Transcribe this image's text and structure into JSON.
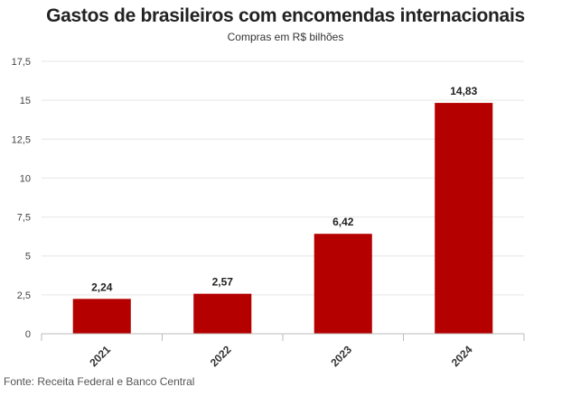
{
  "chart_data": {
    "type": "bar",
    "title": "Gastos de brasileiros com encomendas internacionais",
    "subtitle": "Compras em R$ bilhões",
    "categories": [
      "2021",
      "2022",
      "2023",
      "2024"
    ],
    "values": [
      2.24,
      2.57,
      6.42,
      14.83
    ],
    "value_labels": [
      "2,24",
      "2,57",
      "6,42",
      "14,83"
    ],
    "y_ticks": [
      "0",
      "2,5",
      "5",
      "7,5",
      "10",
      "12,5",
      "15",
      "17,5"
    ],
    "ylim": [
      0,
      17.5
    ],
    "xlabel": "",
    "ylabel": "",
    "grid": true,
    "bar_color": "#b50000"
  },
  "source": "Fonte: Receita Federal e Banco Central"
}
